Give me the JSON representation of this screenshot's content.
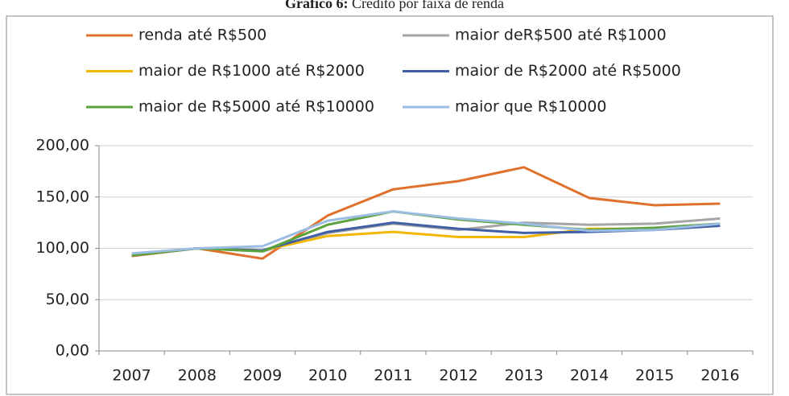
{
  "chart_data": {
    "type": "line",
    "title_label": "Gráfico 6:",
    "title": "Crédito por faixa de renda",
    "categories": [
      "2007",
      "2008",
      "2009",
      "2010",
      "2011",
      "2012",
      "2013",
      "2014",
      "2015",
      "2016"
    ],
    "series": [
      {
        "name": "renda até R$500",
        "color": "#e0712d",
        "values": [
          92.5,
          100,
          90,
          132,
          157.5,
          165.5,
          179,
          149,
          142,
          143.5
        ]
      },
      {
        "name": "maior deR$500 até R$1000",
        "color": "#a5a5a5",
        "values": [
          93,
          100,
          97,
          115,
          124,
          118,
          125,
          123,
          124,
          129
        ]
      },
      {
        "name": "maior de R$1000 até R$2000",
        "color": "#f2b705",
        "values": [
          93,
          100,
          98,
          112,
          116,
          111,
          111,
          119,
          119,
          124
        ]
      },
      {
        "name": "maior de R$2000 até R$5000",
        "color": "#3f5fa6",
        "values": [
          93,
          100,
          98,
          116,
          125,
          119,
          115,
          116,
          118,
          122
        ]
      },
      {
        "name": "maior de R$5000 até R$10000",
        "color": "#5ca23c",
        "values": [
          93,
          100,
          97,
          123,
          136,
          128,
          123,
          118,
          120,
          124
        ]
      },
      {
        "name": "maior que R$10000",
        "color": "#9cbde2",
        "values": [
          95,
          100,
          102,
          127,
          136,
          129,
          124,
          117,
          118,
          124
        ]
      }
    ],
    "ylim": [
      0,
      200
    ],
    "yticks": [
      {
        "value": 0,
        "label": "0,00"
      },
      {
        "value": 50,
        "label": "50,00"
      },
      {
        "value": 100,
        "label": "100,00"
      },
      {
        "value": 150,
        "label": "150,00"
      },
      {
        "value": 200,
        "label": "200,00"
      }
    ],
    "grid": true
  }
}
